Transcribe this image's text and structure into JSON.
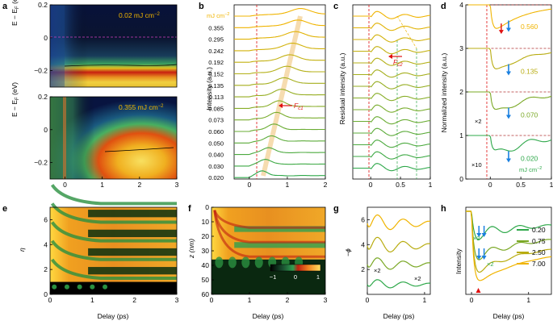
{
  "panels": {
    "a": {
      "label": "a",
      "ylabel": "E − E",
      "ylabel_sub": "F",
      "ylabel_unit": " (eV)",
      "top_annotation": "0.02 mJ cm",
      "top_annotation_sup": "−2",
      "bottom_annotation": "0.355 mJ cm",
      "bottom_annotation_sup": "−2"
    },
    "b": {
      "label": "b",
      "ylabel": "Intensity (a.u.)",
      "unit_label": "mJ cm",
      "unit_sup": "−2",
      "annotation": "F",
      "annotation_sub": "c1"
    },
    "c": {
      "label": "c",
      "ylabel": "Residual intensity (a.u.)",
      "annotation": "F",
      "annotation_sub": "c2"
    },
    "d": {
      "label": "d",
      "ylabel": "Normalized intensity (a.u.)",
      "multipliers": [
        "×2",
        "×10"
      ],
      "unit_label": "mJ cm",
      "unit_sup": "−2"
    },
    "e": {
      "label": "e",
      "ylabel": "η",
      "xlabel": "Delay (ps)"
    },
    "f": {
      "label": "f",
      "ylabel": "z (nm)",
      "xlabel": "Delay (ps)",
      "colorbar_ticks": [
        "−1",
        "0",
        "1"
      ]
    },
    "g": {
      "label": "g",
      "ylabel": "−ϕ",
      "xlabel": "Delay (ps)",
      "multipliers": [
        "×2",
        "×2"
      ]
    },
    "h": {
      "label": "h",
      "ylabel": "Intensity",
      "xlabel": "Delay (ps)",
      "multipliers": [
        "×2",
        "×2"
      ]
    }
  },
  "colors": {
    "yellow": "#f0b400",
    "olive": "#9aa21a",
    "green": "#2ea84a",
    "red": "#e01010",
    "blue": "#1a80e0"
  },
  "chart_data": [
    {
      "id": "a",
      "type": "heatmap",
      "xlim": [
        -0.4,
        3
      ],
      "xticks": [
        "0",
        "1",
        "2",
        "3"
      ],
      "subplots": [
        {
          "ylim": [
            -0.3,
            0.2
          ],
          "yticks": [
            "0.2",
            "0",
            "−0.2"
          ]
        },
        {
          "ylim": [
            -0.3,
            0.2
          ],
          "yticks": [
            "0.2",
            "0",
            "−0.2"
          ]
        }
      ]
    },
    {
      "id": "b",
      "type": "line",
      "xlim": [
        -0.4,
        2
      ],
      "xticks": [
        "0",
        "1",
        "2"
      ],
      "fluences": [
        "0.355",
        "0.295",
        "0.242",
        "0.192",
        "0.152",
        "0.135",
        "0.113",
        "0.085",
        "0.073",
        "0.060",
        "0.050",
        "0.040",
        "0.030",
        "0.020"
      ]
    },
    {
      "id": "c",
      "type": "line",
      "xlim": [
        -0.3,
        1
      ],
      "xticks": [
        "0",
        "0.5",
        "1"
      ]
    },
    {
      "id": "d",
      "type": "line",
      "xlim": [
        -0.4,
        1
      ],
      "ylim": [
        0,
        4
      ],
      "xticks": [
        "0",
        "0.5",
        "1"
      ],
      "yticks": [
        "0",
        "1",
        "2",
        "3",
        "4"
      ],
      "series": [
        {
          "name": "0.560",
          "color": "#f0b400"
        },
        {
          "name": "0.135",
          "color": "#b8ac10"
        },
        {
          "name": "0.070",
          "color": "#7aa825"
        },
        {
          "name": "0.020",
          "color": "#2ea84a"
        }
      ]
    },
    {
      "id": "e",
      "type": "heatmap",
      "xlim": [
        0,
        3
      ],
      "ylim": [
        0,
        7
      ],
      "xticks": [
        "0",
        "1",
        "2",
        "3"
      ],
      "yticks": [
        "0",
        "2",
        "4",
        "6"
      ]
    },
    {
      "id": "f",
      "type": "heatmap",
      "xlim": [
        0,
        3
      ],
      "ylim": [
        60,
        0
      ],
      "xticks": [
        "0",
        "1",
        "2",
        "3"
      ],
      "yticks": [
        "0",
        "10",
        "20",
        "30",
        "40",
        "50",
        "60"
      ]
    },
    {
      "id": "g",
      "type": "line",
      "xlim": [
        0,
        1.1
      ],
      "ylim": [
        0,
        7
      ],
      "xticks": [
        "0",
        "1"
      ],
      "yticks": [
        "2",
        "4",
        "6"
      ]
    },
    {
      "id": "h",
      "type": "line",
      "xlim": [
        -0.1,
        1.4
      ],
      "xticks": [
        "0",
        "1"
      ],
      "series": [
        {
          "name": "0.20",
          "color": "#2ea84a"
        },
        {
          "name": "0.75",
          "color": "#7aa825"
        },
        {
          "name": "2.50",
          "color": "#b8ac10"
        },
        {
          "name": "7.00",
          "color": "#f0b400"
        }
      ]
    }
  ]
}
